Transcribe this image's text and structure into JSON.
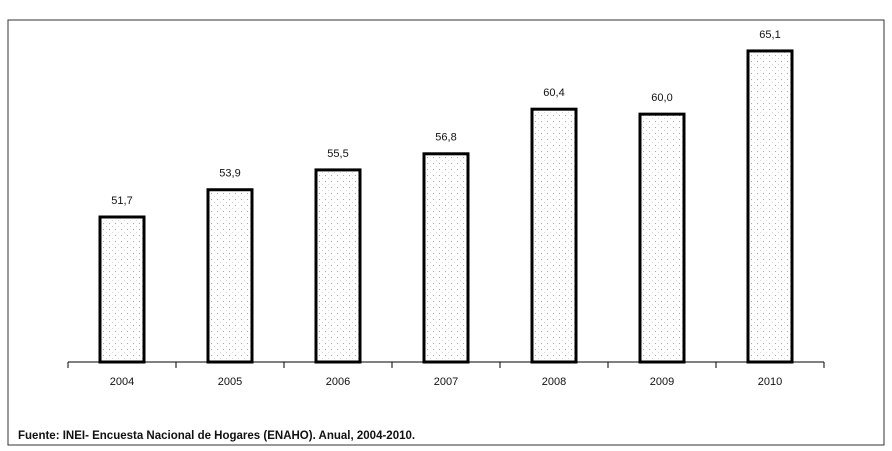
{
  "chart_data": {
    "type": "bar",
    "categories": [
      "2004",
      "2005",
      "2006",
      "2007",
      "2008",
      "2009",
      "2010"
    ],
    "values": [
      51.7,
      53.9,
      55.5,
      56.8,
      60.4,
      60.0,
      65.1
    ],
    "value_labels": [
      "51,7",
      "53,9",
      "55,5",
      "56,8",
      "60,4",
      "60,0",
      "65,1"
    ],
    "color": "#ffffff",
    "ylim": [
      40,
      68
    ],
    "source": "Fuente: INEI- Encuesta Nacional de Hogares (ENAHO). Anual, 2004-2010."
  }
}
